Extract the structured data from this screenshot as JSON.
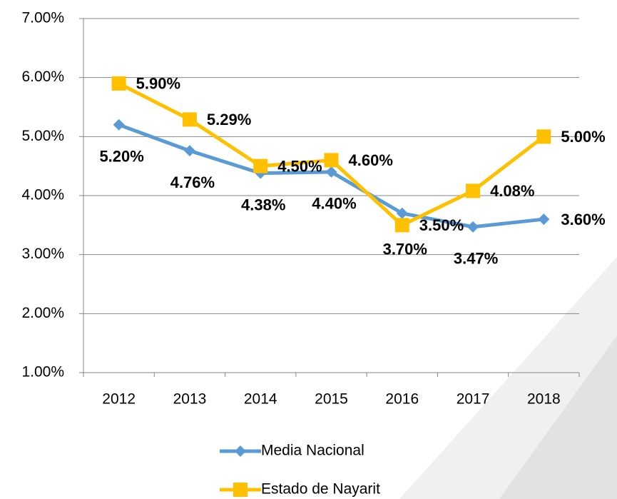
{
  "chart_data": {
    "type": "line",
    "categories": [
      "2012",
      "2013",
      "2014",
      "2015",
      "2016",
      "2017",
      "2018"
    ],
    "series": [
      {
        "name": "Media Nacional",
        "color": "#5b9bd5",
        "marker": "diamond",
        "values": [
          5.2,
          4.76,
          4.38,
          4.4,
          3.7,
          3.47,
          3.6
        ],
        "value_labels": [
          "5.20%",
          "4.76%",
          "4.38%",
          "4.40%",
          "3.70%",
          "3.47%",
          "3.60%"
        ]
      },
      {
        "name": "Estado de Nayarit",
        "color": "#ffc000",
        "marker": "square",
        "values": [
          5.9,
          5.29,
          4.5,
          4.6,
          3.5,
          4.08,
          5.0
        ],
        "value_labels": [
          "5.90%",
          "5.29%",
          "4.50%",
          "4.60%",
          "3.50%",
          "4.08%",
          "5.00%"
        ]
      }
    ],
    "ylim": [
      1,
      7
    ],
    "yticks": [
      {
        "value": 1,
        "label": "1.00%"
      },
      {
        "value": 2,
        "label": "2.00%"
      },
      {
        "value": 3,
        "label": "3.00%"
      },
      {
        "value": 4,
        "label": "4.00%"
      },
      {
        "value": 5,
        "label": "5.00%"
      },
      {
        "value": 6,
        "label": "6.00%"
      },
      {
        "value": 7,
        "label": "7.00%"
      }
    ],
    "grid": true,
    "legend": "bottom"
  }
}
